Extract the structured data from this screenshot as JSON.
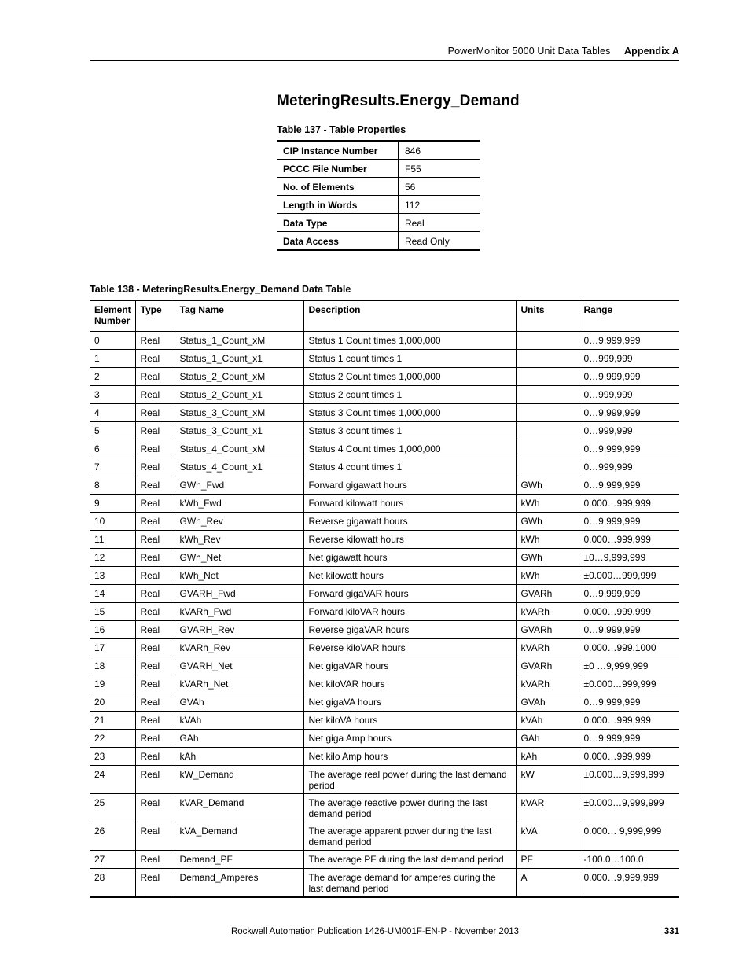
{
  "header": {
    "doc_title": "PowerMonitor 5000 Unit Data Tables",
    "appendix": "Appendix A"
  },
  "section_title": "MeteringResults.Energy_Demand",
  "props": {
    "caption": "Table 137 - Table Properties",
    "rows": [
      {
        "label": "CIP Instance Number",
        "value": "846"
      },
      {
        "label": "PCCC File Number",
        "value": "F55"
      },
      {
        "label": "No. of Elements",
        "value": "56"
      },
      {
        "label": "Length in Words",
        "value": "112"
      },
      {
        "label": "Data Type",
        "value": "Real"
      },
      {
        "label": "Data Access",
        "value": "Read Only"
      }
    ]
  },
  "data": {
    "caption": "Table 138 - MeteringResults.Energy_Demand Data Table",
    "columns": [
      "Element Number",
      "Type",
      "Tag Name",
      "Description",
      "Units",
      "Range"
    ],
    "rows": [
      [
        "0",
        "Real",
        "Status_1_Count_xM",
        "Status 1 Count times 1,000,000",
        "",
        "0…9,999,999"
      ],
      [
        "1",
        "Real",
        "Status_1_Count_x1",
        "Status 1 count times 1",
        "",
        "0…999,999"
      ],
      [
        "2",
        "Real",
        "Status_2_Count_xM",
        "Status 2 Count times 1,000,000",
        "",
        "0…9,999,999"
      ],
      [
        "3",
        "Real",
        "Status_2_Count_x1",
        "Status 2 count times 1",
        "",
        "0…999,999"
      ],
      [
        "4",
        "Real",
        "Status_3_Count_xM",
        "Status 3 Count times 1,000,000",
        "",
        "0…9,999,999"
      ],
      [
        "5",
        "Real",
        "Status_3_Count_x1",
        "Status 3 count times 1",
        "",
        "0…999,999"
      ],
      [
        "6",
        "Real",
        "Status_4_Count_xM",
        "Status 4 Count times 1,000,000",
        "",
        "0…9,999,999"
      ],
      [
        "7",
        "Real",
        "Status_4_Count_x1",
        "Status 4 count times 1",
        "",
        "0…999,999"
      ],
      [
        "8",
        "Real",
        "GWh_Fwd",
        "Forward gigawatt hours",
        "GWh",
        "0…9,999,999"
      ],
      [
        "9",
        "Real",
        "kWh_Fwd",
        "Forward kilowatt hours",
        "kWh",
        "0.000…999,999"
      ],
      [
        "10",
        "Real",
        "GWh_Rev",
        "Reverse gigawatt hours",
        "GWh",
        "0…9,999,999"
      ],
      [
        "11",
        "Real",
        "kWh_Rev",
        "Reverse kilowatt hours",
        "kWh",
        "0.000…999,999"
      ],
      [
        "12",
        "Real",
        "GWh_Net",
        "Net gigawatt hours",
        "GWh",
        "±0…9,999,999"
      ],
      [
        "13",
        "Real",
        "kWh_Net",
        "Net kilowatt hours",
        "kWh",
        "±0.000…999,999"
      ],
      [
        "14",
        "Real",
        "GVARH_Fwd",
        "Forward gigaVAR hours",
        "GVARh",
        "0…9,999,999"
      ],
      [
        "15",
        "Real",
        "kVARh_Fwd",
        "Forward kiloVAR hours",
        "kVARh",
        "0.000…999.999"
      ],
      [
        "16",
        "Real",
        "GVARH_Rev",
        "Reverse gigaVAR hours",
        "GVARh",
        "0…9,999,999"
      ],
      [
        "17",
        "Real",
        "kVARh_Rev",
        "Reverse kiloVAR hours",
        "kVARh",
        "0.000…999.1000"
      ],
      [
        "18",
        "Real",
        "GVARH_Net",
        "Net gigaVAR hours",
        "GVARh",
        "±0 …9,999,999"
      ],
      [
        "19",
        "Real",
        "kVARh_Net",
        "Net kiloVAR hours",
        "kVARh",
        "±0.000…999,999"
      ],
      [
        "20",
        "Real",
        "GVAh",
        "Net gigaVA hours",
        "GVAh",
        "0…9,999,999"
      ],
      [
        "21",
        "Real",
        "kVAh",
        "Net kiloVA hours",
        "kVAh",
        "0.000…999,999"
      ],
      [
        "22",
        "Real",
        "GAh",
        "Net giga Amp hours",
        "GAh",
        "0…9,999,999"
      ],
      [
        "23",
        "Real",
        "kAh",
        "Net kilo Amp hours",
        "kAh",
        "0.000…999,999"
      ],
      [
        "24",
        "Real",
        "kW_Demand",
        "The average real power during the last demand period",
        "kW",
        "±0.000…9,999,999"
      ],
      [
        "25",
        "Real",
        "kVAR_Demand",
        "The average reactive power during the last demand period",
        "kVAR",
        "±0.000…9,999,999"
      ],
      [
        "26",
        "Real",
        "kVA_Demand",
        "The average apparent power during the last demand period",
        "kVA",
        "0.000… 9,999,999"
      ],
      [
        "27",
        "Real",
        "Demand_PF",
        "The average PF during the last demand period",
        "PF",
        "-100.0…100.0"
      ],
      [
        "28",
        "Real",
        "Demand_Amperes",
        "The average demand for amperes during the last demand period",
        "A",
        "0.000…9,999,999"
      ]
    ]
  },
  "footer": {
    "pub": "Rockwell Automation Publication 1426-UM001F-EN-P - November 2013",
    "page": "331"
  }
}
